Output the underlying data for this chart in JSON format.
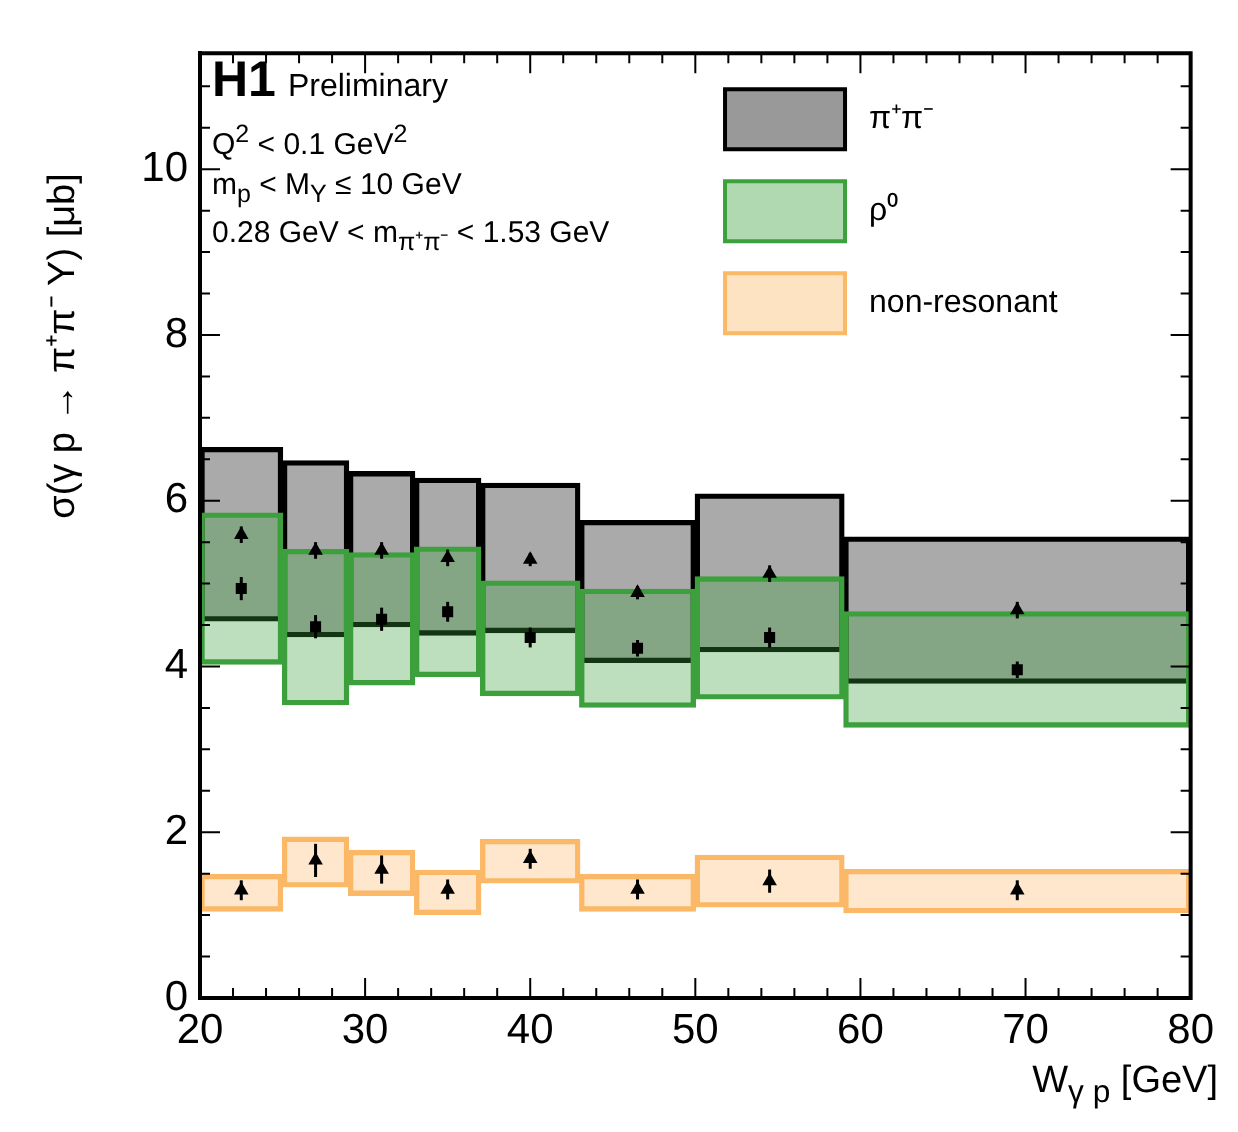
{
  "chart_data": {
    "type": "bar",
    "xlabel": "W$_{γ p}$ [GeV]",
    "ylabel": "σ(γ p → π⁺π⁻ Y) [μb]",
    "annotations": [
      "H1",
      "Preliminary",
      "Q$^{2}$ < 0.1 GeV$^{2}$",
      "m$_{p}$ < M$_{Y}$ ≤ 10 GeV",
      "0.28 GeV < m$_{π⁺π⁻}$ < 1.53 GeV"
    ],
    "xlim": [
      20,
      80
    ],
    "xticks": [
      20,
      {
        "value": 22,
        "label": null
      },
      {
        "value": 24,
        "label": null
      },
      {
        "value": 26,
        "label": null
      },
      {
        "value": 28,
        "label": null
      },
      30,
      {
        "value": 32,
        "label": null
      },
      {
        "value": 34,
        "label": null
      },
      {
        "value": 36,
        "label": null
      },
      {
        "value": 38,
        "label": null
      },
      40,
      {
        "value": 42,
        "label": null
      },
      {
        "value": 44,
        "label": null
      },
      {
        "value": 46,
        "label": null
      },
      {
        "value": 48,
        "label": null
      },
      50,
      {
        "value": 52,
        "label": null
      },
      {
        "value": 54,
        "label": null
      },
      {
        "value": 56,
        "label": null
      },
      {
        "value": 58,
        "label": null
      },
      60,
      {
        "value": 62,
        "label": null
      },
      {
        "value": 64,
        "label": null
      },
      {
        "value": 66,
        "label": null
      },
      {
        "value": 68,
        "label": null
      },
      70,
      {
        "value": 72,
        "label": null
      },
      {
        "value": 74,
        "label": null
      },
      {
        "value": 76,
        "label": null
      },
      {
        "value": 78,
        "label": null
      },
      80
    ],
    "ylim": [
      0,
      11.4
    ],
    "yticks": [
      0,
      {
        "value": 0.5,
        "label": null
      },
      {
        "value": 1,
        "label": null
      },
      {
        "value": 1.5,
        "label": null
      },
      2,
      {
        "value": 2.5,
        "label": null
      },
      {
        "value": 3,
        "label": null
      },
      {
        "value": 3.5,
        "label": null
      },
      4,
      {
        "value": 4.5,
        "label": null
      },
      {
        "value": 5,
        "label": null
      },
      {
        "value": 5.5,
        "label": null
      },
      6,
      {
        "value": 6.5,
        "label": null
      },
      {
        "value": 7,
        "label": null
      },
      {
        "value": 7.5,
        "label": null
      },
      8,
      {
        "value": 8.5,
        "label": null
      },
      {
        "value": 9,
        "label": null
      },
      {
        "value": 9.5,
        "label": null
      },
      10,
      {
        "value": 10.5,
        "label": null
      },
      {
        "value": 11,
        "label": null
      }
    ],
    "legend": "top right",
    "series": [
      {
        "name": "π⁺π⁻",
        "color": "#000000",
        "x": [
          22.5,
          27,
          31,
          35,
          40,
          46.5,
          54.5,
          69.5
        ],
        "base": [
          4.55,
          4.36,
          4.48,
          4.38,
          4.41,
          4.05,
          4.18,
          3.8
        ],
        "values": [
          2.09,
          2.12,
          1.87,
          1.89,
          1.8,
          1.71,
          1.9,
          1.76
        ]
      },
      {
        "name": "ρ⁰",
        "color": "#3ca03c",
        "x": [
          22.5,
          27,
          31,
          35,
          40,
          46.5,
          54.5,
          69.5
        ],
        "base": [
          4.03,
          3.54,
          3.78,
          3.88,
          3.65,
          3.51,
          3.61,
          3.27
        ],
        "values": [
          1.82,
          1.87,
          1.59,
          1.56,
          1.38,
          1.42,
          1.47,
          1.39
        ]
      },
      {
        "name": "non-resonant",
        "color": "#fbb867",
        "x": [
          22.5,
          27,
          31,
          35,
          40,
          46.5,
          54.5,
          69.5
        ],
        "base": [
          1.05,
          1.34,
          1.24,
          1.01,
          1.39,
          1.05,
          1.1,
          1.03
        ],
        "values": [
          0.44,
          0.6,
          0.54,
          0.53,
          0.52,
          0.44,
          0.62,
          0.52
        ]
      },
      {
        "type": "scatter",
        "marker": "triangle",
        "color": "#000000",
        "x": [
          22.5,
          27,
          31,
          35,
          40,
          46.5,
          54.5,
          69.5
        ],
        "values": [
          5.59,
          5.4,
          5.4,
          5.31,
          5.29,
          4.89,
          5.12,
          4.68
        ],
        "errors": [
          0.1,
          0.1,
          0.1,
          0.1,
          0.08,
          0.08,
          0.1,
          0.1
        ]
      },
      {
        "type": "scatter",
        "marker": "square",
        "color": "#000000",
        "x": [
          22.5,
          27,
          31,
          35,
          40,
          46.5,
          54.5,
          69.5
        ],
        "values": [
          4.94,
          4.48,
          4.57,
          4.66,
          4.35,
          4.22,
          4.35,
          3.96
        ],
        "errors": [
          0.14,
          0.14,
          0.14,
          0.12,
          0.12,
          0.1,
          0.12,
          0.1
        ]
      },
      {
        "type": "scatter",
        "marker": "triangle",
        "color": "#000000",
        "x": [
          22.5,
          27,
          31,
          35,
          40,
          46.5,
          54.5,
          69.5
        ],
        "values": [
          1.3,
          1.66,
          1.55,
          1.31,
          1.68,
          1.31,
          1.41,
          1.3
        ],
        "errors": [
          0.12,
          0.2,
          0.17,
          0.12,
          0.12,
          0.12,
          0.14,
          0.12
        ]
      }
    ]
  }
}
